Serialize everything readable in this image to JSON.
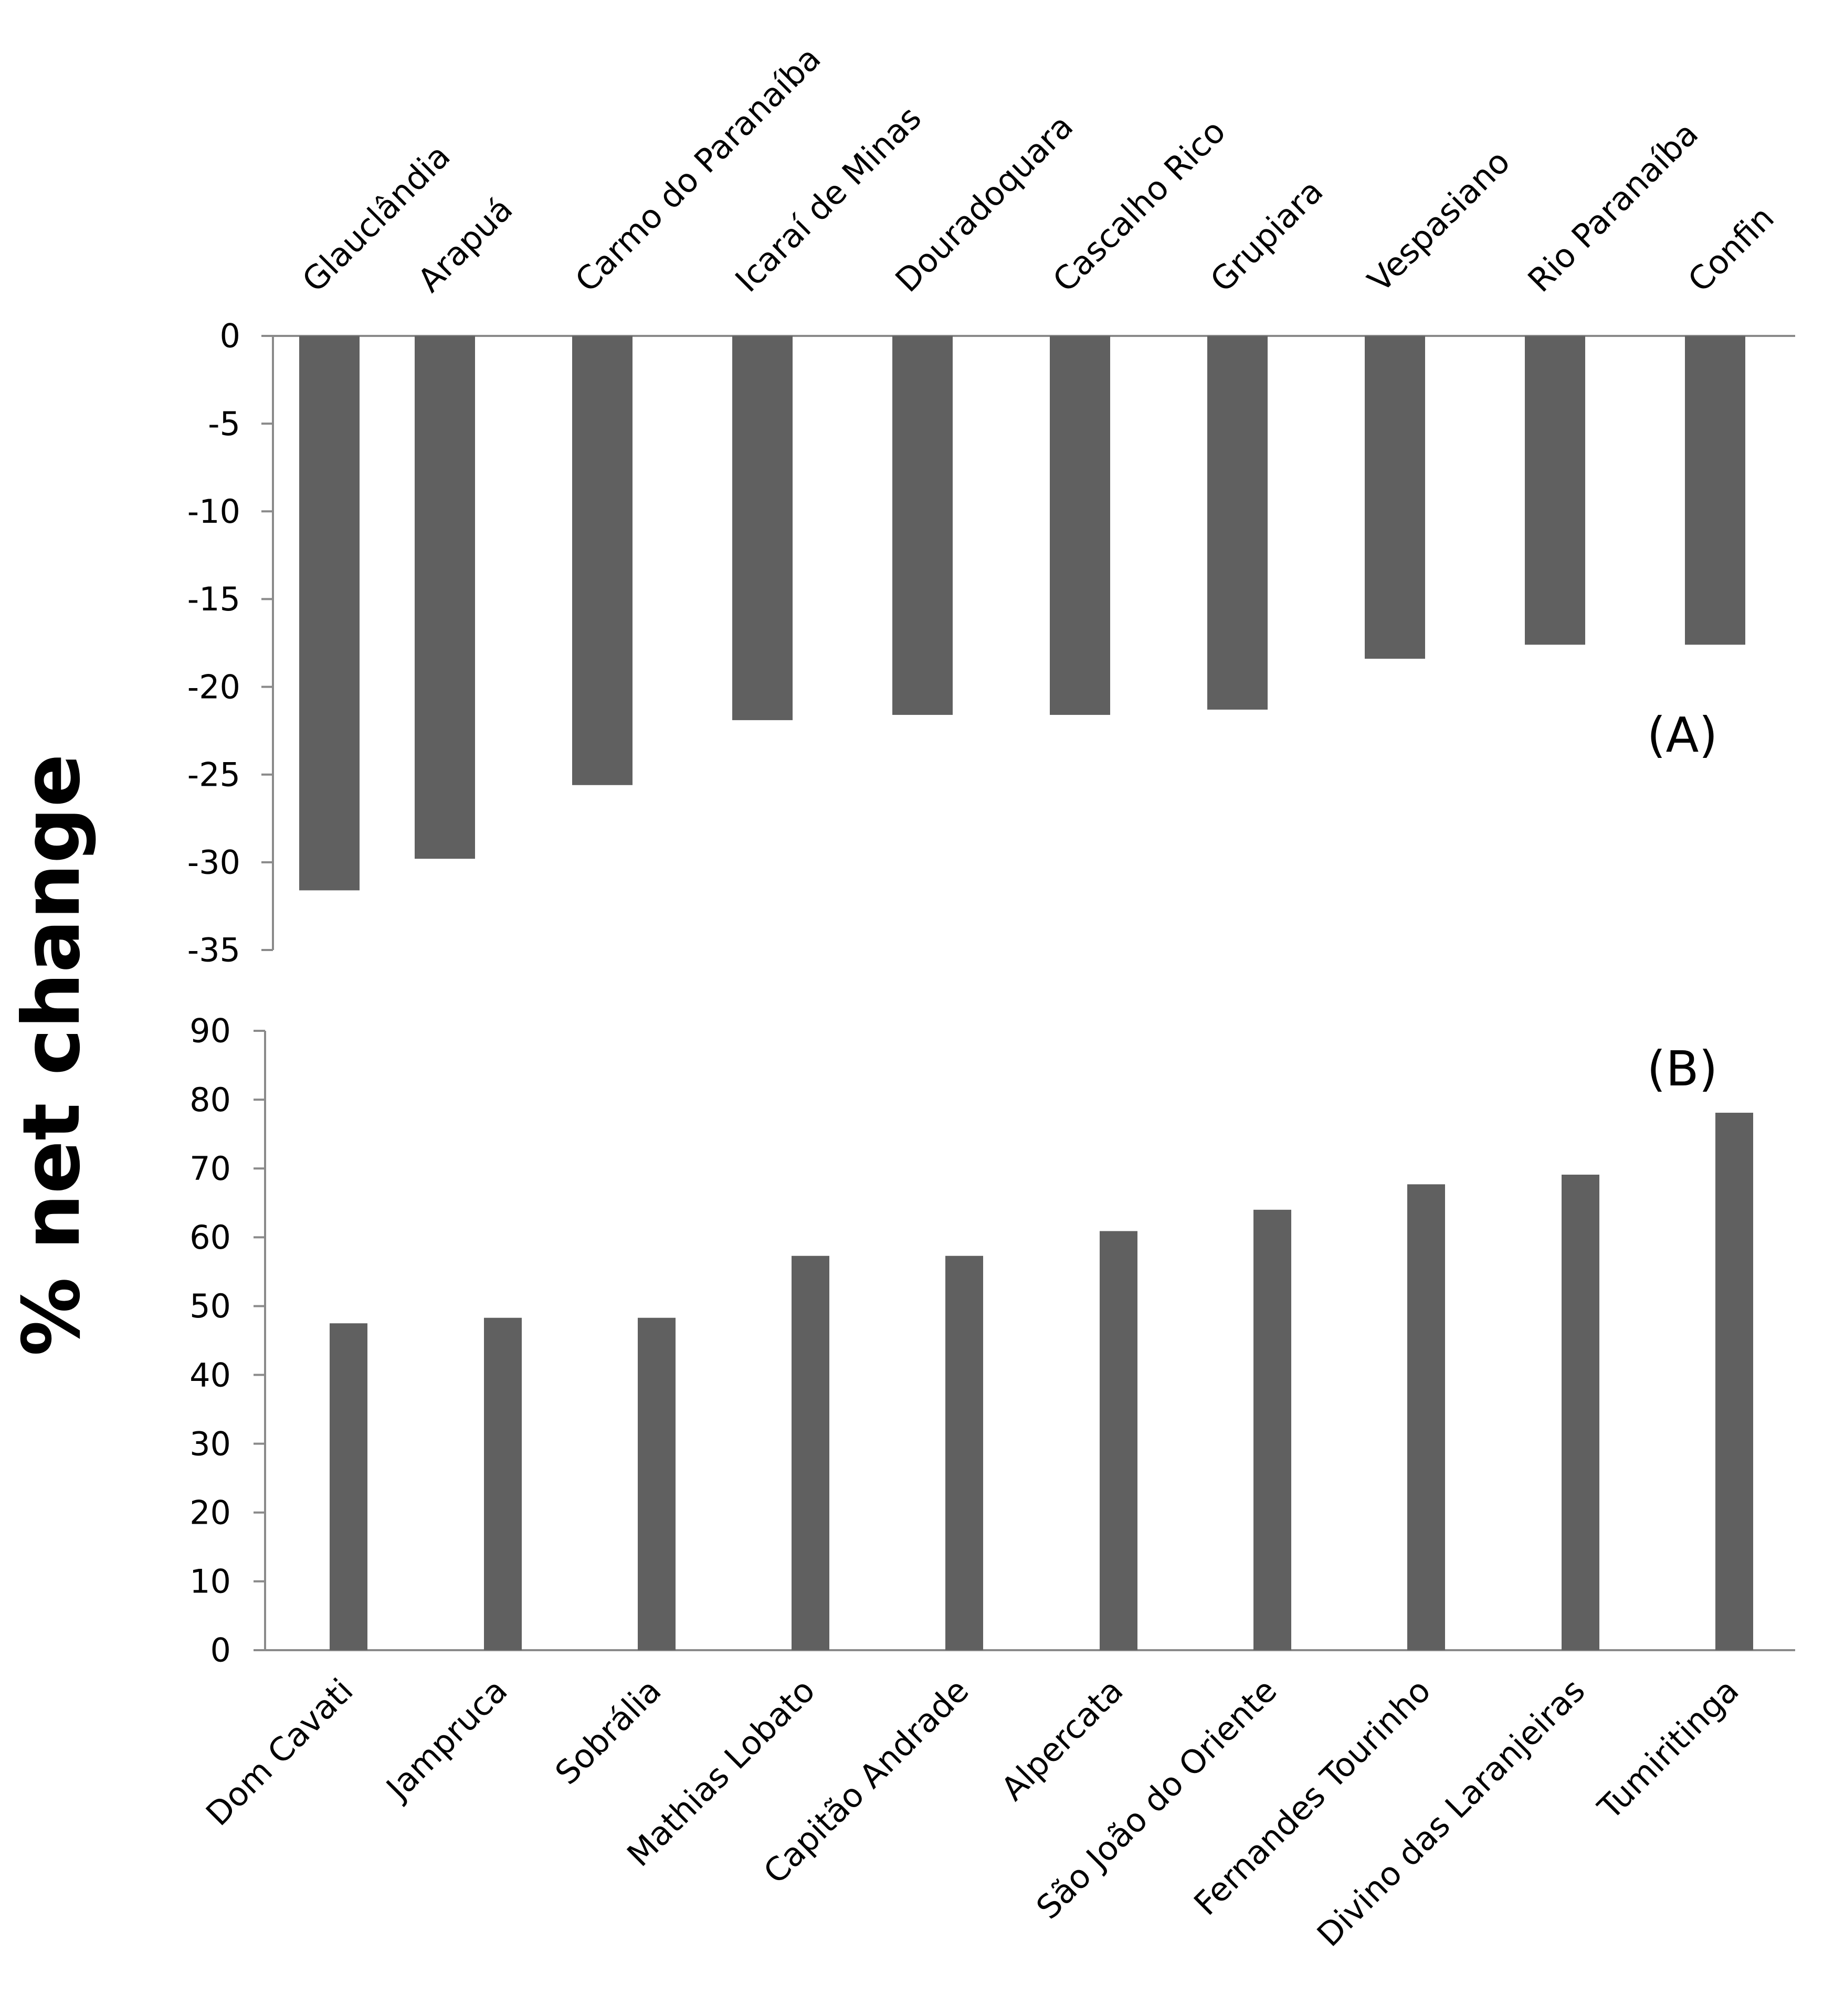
{
  "figure": {
    "shared_ylabel": "% net change"
  },
  "colors": {
    "bar": "#606060",
    "axis": "#8a8a8a",
    "text": "#000000"
  },
  "chart_data": [
    {
      "type": "bar",
      "panel_label": "(A)",
      "title": "",
      "xlabel": "",
      "ylabel": "% net change",
      "ylim": [
        -35,
        0
      ],
      "yticks": [
        0,
        -5,
        -10,
        -15,
        -20,
        -25,
        -30,
        -35
      ],
      "grid": false,
      "category_labels_position": "top",
      "categories": [
        "Glauclândia",
        "Arapuá",
        "Carmo do Paranaíba",
        "Icaraí de Minas",
        "Douradoquara",
        "Cascalho Rico",
        "Grupiara",
        "Vespasiano",
        "Rio Paranaíba",
        "Confin"
      ],
      "values": [
        -31.6,
        -29.8,
        -25.6,
        -21.9,
        -21.6,
        -21.6,
        -21.3,
        -18.4,
        -17.6,
        -17.6
      ]
    },
    {
      "type": "bar",
      "panel_label": "(B)",
      "title": "",
      "xlabel": "",
      "ylabel": "% net change",
      "ylim": [
        0,
        90
      ],
      "yticks": [
        0,
        10,
        20,
        30,
        40,
        50,
        60,
        70,
        80,
        90
      ],
      "grid": false,
      "category_labels_position": "bottom",
      "categories": [
        "Dom Cavati",
        "Jampruca",
        "Sobrália",
        "Mathias Lobato",
        "Capitão Andrade",
        "Alpercata",
        "São João do Oriente",
        "Fernandes Tourinho",
        "Divino das Laranjeiras",
        "Tumiritinga"
      ],
      "values": [
        47.5,
        48.3,
        48.3,
        57.3,
        57.3,
        60.9,
        64.0,
        67.7,
        69.1,
        78.1
      ]
    }
  ]
}
